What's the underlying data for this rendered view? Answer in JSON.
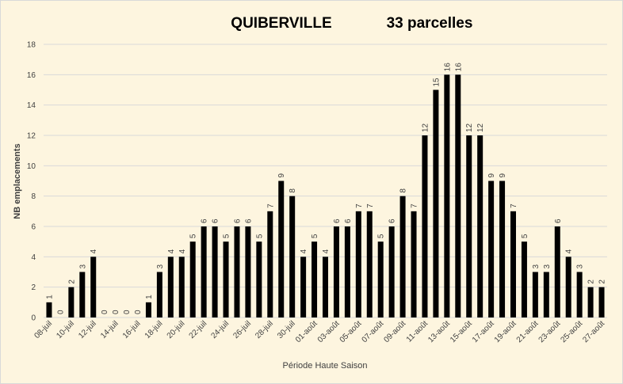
{
  "chart_data": {
    "type": "bar",
    "title": "QUIBERVILLE",
    "subtitle": "33 parcelles",
    "x_label": "Période Haute Saison",
    "y_label": "NB emplacements",
    "categories": [
      "08-juil",
      null,
      "10-juil",
      null,
      "12-juil",
      null,
      "14-juil",
      null,
      "16-juil",
      null,
      "18-juil",
      null,
      "20-juil",
      null,
      "22-juil",
      null,
      "24-juil",
      null,
      "26-juil",
      null,
      "28-juil",
      null,
      "30-juil",
      null,
      "01-août",
      null,
      "03-août",
      null,
      "05-août",
      null,
      "07-août",
      null,
      "09-août",
      null,
      "11-août",
      null,
      "13-août",
      null,
      "15-août",
      null,
      "17-août",
      null,
      "19-août",
      null,
      "21-août",
      null,
      "23-août",
      null,
      "25-août",
      null,
      "27-août"
    ],
    "values": [
      1,
      0,
      2,
      3,
      4,
      0,
      0,
      0,
      0,
      1,
      3,
      4,
      4,
      5,
      6,
      6,
      5,
      6,
      6,
      5,
      7,
      9,
      8,
      4,
      5,
      4,
      6,
      6,
      7,
      7,
      5,
      6,
      8,
      7,
      12,
      15,
      16,
      16,
      12,
      12,
      9,
      9,
      7,
      5,
      3,
      3,
      6,
      4,
      3,
      2,
      2
    ],
    "color": "#000000",
    "ylim": [
      0,
      18
    ],
    "yticks": [
      0,
      2,
      4,
      6,
      8,
      10,
      12,
      14,
      16,
      18
    ],
    "grid": true
  }
}
